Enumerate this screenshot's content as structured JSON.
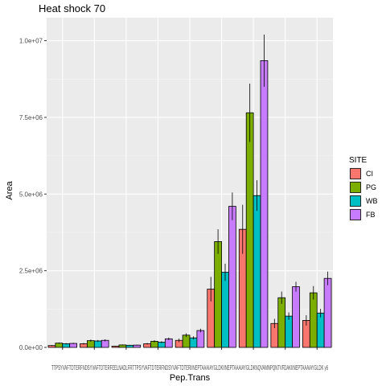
{
  "chart_data": {
    "type": "bar",
    "title": "Heat shock 70",
    "xlabel": "Pep.Trans",
    "ylabel": "Area",
    "ylim": [
      0,
      10750000
    ],
    "yticks": [
      0,
      2500000,
      5000000,
      7500000,
      10000000
    ],
    "ytick_labels": [
      "0.0e+00",
      "2.5e+06",
      "5.0e+06",
      "7.5e+06",
      "1.0e+07"
    ],
    "categories": [
      "TTPSYVAFTDTER y6",
      "FNDSYVAFTDTER y6",
      "FEELNADLFR y6",
      "TTPSYVAFTDTER y7",
      "FNDSYVAFTDTER y7",
      "IINEPTAAAIAYGLDK y8",
      "IINEPTAAAIAYGLDK y9",
      "NQVAMNPQNTVFDAK y6",
      "IINEPTAAAIAYGLDK y6"
    ],
    "series": [
      {
        "name": "CI",
        "color": "#F8766D",
        "values": [
          60000,
          120000,
          40000,
          120000,
          230000,
          1900000,
          3850000,
          780000,
          880000
        ],
        "errors": [
          15000,
          25000,
          10000,
          25000,
          60000,
          400000,
          800000,
          150000,
          170000
        ]
      },
      {
        "name": "PG",
        "color": "#7CAE00",
        "values": [
          140000,
          220000,
          80000,
          200000,
          400000,
          3450000,
          7650000,
          1620000,
          1780000
        ],
        "errors": [
          20000,
          35000,
          15000,
          35000,
          60000,
          400000,
          950000,
          200000,
          220000
        ]
      },
      {
        "name": "WB",
        "color": "#00BFC4",
        "values": [
          120000,
          210000,
          70000,
          170000,
          310000,
          2450000,
          4950000,
          1020000,
          1120000
        ],
        "errors": [
          20000,
          30000,
          12000,
          30000,
          50000,
          280000,
          500000,
          120000,
          140000
        ]
      },
      {
        "name": "FB",
        "color": "#C77CFF",
        "values": [
          130000,
          230000,
          75000,
          280000,
          550000,
          4600000,
          9350000,
          1980000,
          2250000
        ],
        "errors": [
          20000,
          35000,
          15000,
          40000,
          60000,
          450000,
          850000,
          160000,
          220000
        ]
      }
    ],
    "legend": {
      "title": "SITE",
      "position": "right"
    },
    "x_tick_text": "TTPSYVAFTDTERFNDSYVAFTDTERFEELNADLFRTTPSYVAFTDTERFNDSYVAFTDTERIINEPTAAAIAYGLDKIINEPTAAAIAYGLDKNQVAMNPQNTVFDAKIINEPTAAAIAYGLDK y6",
    "grid": true
  }
}
